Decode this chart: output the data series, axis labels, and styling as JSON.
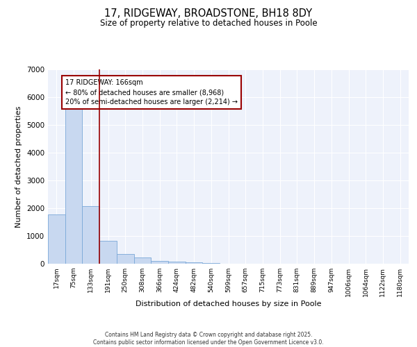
{
  "title1": "17, RIDGEWAY, BROADSTONE, BH18 8DY",
  "title2": "Size of property relative to detached houses in Poole",
  "xlabel": "Distribution of detached houses by size in Poole",
  "ylabel": "Number of detached properties",
  "categories": [
    "17sqm",
    "75sqm",
    "133sqm",
    "191sqm",
    "250sqm",
    "308sqm",
    "366sqm",
    "424sqm",
    "482sqm",
    "540sqm",
    "599sqm",
    "657sqm",
    "715sqm",
    "773sqm",
    "831sqm",
    "889sqm",
    "947sqm",
    "1006sqm",
    "1064sqm",
    "1122sqm",
    "1180sqm"
  ],
  "values": [
    1780,
    5800,
    2080,
    830,
    360,
    230,
    100,
    80,
    60,
    30,
    0,
    0,
    0,
    0,
    0,
    0,
    0,
    0,
    0,
    0,
    0
  ],
  "bar_color": "#c8d8f0",
  "bar_edgecolor": "#7aa8d8",
  "property_line_color": "#990000",
  "annotation_text": "17 RIDGEWAY: 166sqm\n← 80% of detached houses are smaller (8,968)\n20% of semi-detached houses are larger (2,214) →",
  "annotation_box_edgecolor": "#990000",
  "ylim": [
    0,
    7000
  ],
  "yticks": [
    0,
    1000,
    2000,
    3000,
    4000,
    5000,
    6000,
    7000
  ],
  "background_color": "#eef2fb",
  "grid_color": "#ffffff",
  "footer_line1": "Contains HM Land Registry data © Crown copyright and database right 2025.",
  "footer_line2": "Contains public sector information licensed under the Open Government Licence v3.0."
}
